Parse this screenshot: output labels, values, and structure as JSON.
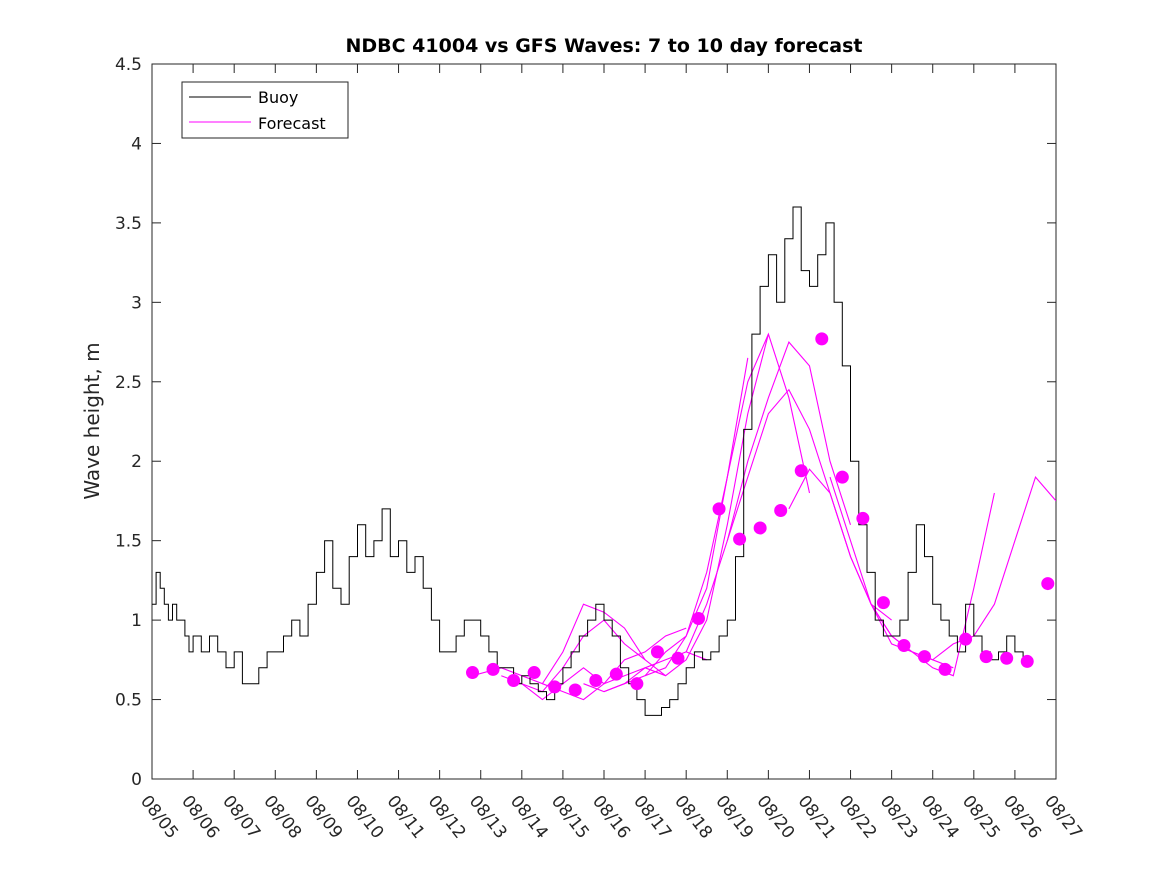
{
  "chart_data": {
    "type": "line",
    "title": "NDBC 41004 vs GFS Waves: 7 to 10 day forecast",
    "xlabel": "",
    "ylabel": "Wave height, m",
    "xlim": [
      0,
      22
    ],
    "ylim": [
      0,
      4.5
    ],
    "yticks": [
      0,
      0.5,
      1,
      1.5,
      2,
      2.5,
      3,
      3.5,
      4,
      4.5
    ],
    "ytick_labels": [
      "0",
      "0.5",
      "1",
      "1.5",
      "2",
      "2.5",
      "3",
      "3.5",
      "4",
      "4.5"
    ],
    "xtick_labels": [
      "08/05",
      "08/06",
      "08/07",
      "08/08",
      "08/09",
      "08/10",
      "08/11",
      "08/12",
      "08/13",
      "08/14",
      "08/15",
      "08/16",
      "08/17",
      "08/18",
      "08/19",
      "08/20",
      "08/21",
      "08/22",
      "08/23",
      "08/24",
      "08/25",
      "08/26",
      "08/27"
    ],
    "legend": {
      "position": "top-left",
      "entries": [
        "Buoy",
        "Forecast"
      ]
    },
    "colors": {
      "buoy": "#000000",
      "forecast": "#ff00ff",
      "axis": "#262626"
    },
    "series": [
      {
        "name": "Buoy",
        "x": [
          0,
          0.1,
          0.2,
          0.3,
          0.4,
          0.5,
          0.6,
          0.7,
          0.8,
          0.9,
          1.0,
          1.2,
          1.4,
          1.6,
          1.8,
          2.0,
          2.2,
          2.4,
          2.6,
          2.8,
          3.0,
          3.2,
          3.4,
          3.6,
          3.8,
          4.0,
          4.2,
          4.4,
          4.6,
          4.8,
          5.0,
          5.2,
          5.4,
          5.6,
          5.8,
          6.0,
          6.2,
          6.4,
          6.6,
          6.8,
          7.0,
          7.2,
          7.4,
          7.6,
          7.8,
          8.0,
          8.2,
          8.4,
          8.6,
          8.8,
          9.0,
          9.2,
          9.4,
          9.6,
          9.8,
          10.0,
          10.2,
          10.4,
          10.6,
          10.8,
          11.0,
          11.2,
          11.4,
          11.6,
          11.8,
          12.0,
          12.2,
          12.4,
          12.6,
          12.8,
          13.0,
          13.2,
          13.4,
          13.6,
          13.8,
          14.0,
          14.2,
          14.4,
          14.6,
          14.8,
          15.0,
          15.2,
          15.4,
          15.6,
          15.8,
          16.0,
          16.2,
          16.4,
          16.6,
          16.8,
          17.0,
          17.2,
          17.4,
          17.6,
          17.8,
          18.0,
          18.2,
          18.4,
          18.6,
          18.8,
          19.0,
          19.2,
          19.4,
          19.6,
          19.8,
          20.0,
          20.2,
          20.4,
          20.6,
          20.8,
          21.0,
          21.2
        ],
        "values": [
          1.1,
          1.3,
          1.2,
          1.1,
          1.0,
          1.1,
          1.0,
          1.0,
          0.9,
          0.8,
          0.9,
          0.8,
          0.9,
          0.8,
          0.7,
          0.8,
          0.6,
          0.6,
          0.7,
          0.8,
          0.8,
          0.9,
          1.0,
          0.9,
          1.1,
          1.3,
          1.5,
          1.2,
          1.1,
          1.4,
          1.6,
          1.4,
          1.5,
          1.7,
          1.4,
          1.5,
          1.3,
          1.4,
          1.2,
          1.0,
          0.8,
          0.8,
          0.9,
          1.0,
          1.0,
          0.9,
          0.8,
          0.7,
          0.7,
          0.6,
          0.65,
          0.6,
          0.55,
          0.5,
          0.6,
          0.7,
          0.8,
          0.9,
          1.0,
          1.1,
          1.0,
          0.9,
          0.7,
          0.6,
          0.5,
          0.4,
          0.4,
          0.45,
          0.5,
          0.6,
          0.7,
          0.8,
          0.75,
          0.8,
          0.9,
          1.0,
          1.4,
          2.2,
          2.8,
          3.1,
          3.3,
          3.0,
          3.4,
          3.6,
          3.2,
          3.1,
          3.3,
          3.5,
          3.0,
          2.6,
          2.0,
          1.6,
          1.3,
          1.0,
          0.9,
          0.9,
          1.0,
          1.3,
          1.6,
          1.4,
          1.1,
          1.0,
          0.9,
          0.8,
          1.1,
          0.9,
          0.8,
          0.75,
          0.8,
          0.9,
          0.8,
          0.75
        ]
      },
      {
        "name": "Forecast",
        "lines": [
          {
            "x": [
              7.8,
              8.5,
              9.0,
              9.5,
              10.0,
              10.5,
              11.0,
              11.5,
              12.0
            ],
            "values": [
              0.65,
              0.7,
              0.65,
              0.6,
              0.8,
              1.1,
              1.05,
              0.95,
              0.75
            ]
          },
          {
            "x": [
              8.5,
              9.0,
              9.5,
              10.0,
              10.5,
              11.0,
              11.5,
              12.0,
              12.5
            ],
            "values": [
              0.65,
              0.6,
              0.55,
              0.7,
              0.9,
              1.0,
              0.85,
              0.75,
              0.65
            ]
          },
          {
            "x": [
              9.0,
              9.5,
              10.0,
              10.5,
              11.0,
              11.5,
              12.0,
              12.5,
              13.0
            ],
            "values": [
              0.6,
              0.5,
              0.6,
              0.7,
              0.6,
              0.75,
              0.8,
              0.9,
              0.95
            ]
          },
          {
            "x": [
              9.5,
              10.0,
              10.5,
              11.0,
              11.5,
              12.0,
              12.5,
              13.0,
              13.5
            ],
            "values": [
              0.6,
              0.55,
              0.5,
              0.6,
              0.65,
              0.7,
              0.75,
              0.8,
              0.75
            ]
          },
          {
            "x": [
              10.5,
              11.0,
              11.5,
              12.0,
              12.5,
              13.0,
              13.5,
              14.0,
              14.5
            ],
            "values": [
              0.6,
              0.55,
              0.6,
              0.65,
              0.8,
              0.9,
              1.2,
              1.9,
              2.65
            ]
          },
          {
            "x": [
              11.0,
              11.5,
              12.0,
              12.5,
              13.0,
              13.5,
              14.0,
              14.5,
              15.0
            ],
            "values": [
              0.55,
              0.6,
              0.7,
              0.65,
              0.75,
              1.0,
              1.6,
              2.3,
              2.8
            ]
          },
          {
            "x": [
              12.0,
              12.5,
              13.0,
              13.5,
              14.0,
              14.5,
              15.0,
              15.5,
              16.0
            ],
            "values": [
              0.65,
              0.7,
              0.9,
              1.3,
              1.9,
              2.5,
              2.8,
              2.4,
              1.8
            ]
          },
          {
            "x": [
              13.0,
              13.5,
              14.0,
              14.5,
              15.0,
              15.5,
              16.0,
              16.5,
              17.0
            ],
            "values": [
              0.8,
              1.1,
              1.5,
              2.0,
              2.4,
              2.75,
              2.6,
              2.0,
              1.6
            ]
          },
          {
            "x": [
              14.0,
              14.5,
              15.0,
              15.5,
              16.0,
              16.5,
              17.0,
              17.5,
              18.0
            ],
            "values": [
              1.5,
              1.9,
              2.3,
              2.45,
              2.2,
              1.8,
              1.4,
              1.1,
              1.0
            ]
          },
          {
            "x": [
              15.5,
              16.0,
              16.5,
              17.0,
              17.5,
              18.0,
              18.5,
              19.0,
              19.5
            ],
            "values": [
              1.7,
              1.95,
              1.8,
              1.4,
              1.1,
              0.9,
              0.8,
              0.75,
              0.7
            ]
          },
          {
            "x": [
              16.5,
              17.0,
              17.5,
              18.0,
              18.5,
              19.0,
              19.5,
              20.0,
              20.5
            ],
            "values": [
              1.9,
              1.5,
              1.1,
              0.85,
              0.8,
              0.7,
              0.65,
              1.2,
              1.8
            ]
          },
          {
            "x": [
              17.5,
              18.0,
              18.5,
              19.0,
              19.5,
              20.0,
              20.5,
              21.0,
              21.5,
              22.0
            ],
            "values": [
              1.1,
              0.9,
              0.8,
              0.75,
              0.85,
              0.9,
              1.1,
              1.5,
              1.9,
              1.75
            ]
          }
        ],
        "markers": {
          "x": [
            7.8,
            8.3,
            8.8,
            9.3,
            9.8,
            10.3,
            10.8,
            11.3,
            11.8,
            12.3,
            12.8,
            13.3,
            13.8,
            14.3,
            14.8,
            15.3,
            15.8,
            16.3,
            16.8,
            17.3,
            17.8,
            18.3,
            18.8,
            19.3,
            19.8,
            20.3,
            20.8,
            21.3,
            21.8
          ],
          "values": [
            0.67,
            0.69,
            0.62,
            0.67,
            0.58,
            0.56,
            0.62,
            0.66,
            0.6,
            0.8,
            0.76,
            1.01,
            1.7,
            1.51,
            1.58,
            1.69,
            1.94,
            2.77,
            1.9,
            1.64,
            1.11,
            0.84,
            0.77,
            0.69,
            0.88,
            0.77,
            0.76,
            0.74,
            1.23
          ]
        }
      }
    ]
  }
}
